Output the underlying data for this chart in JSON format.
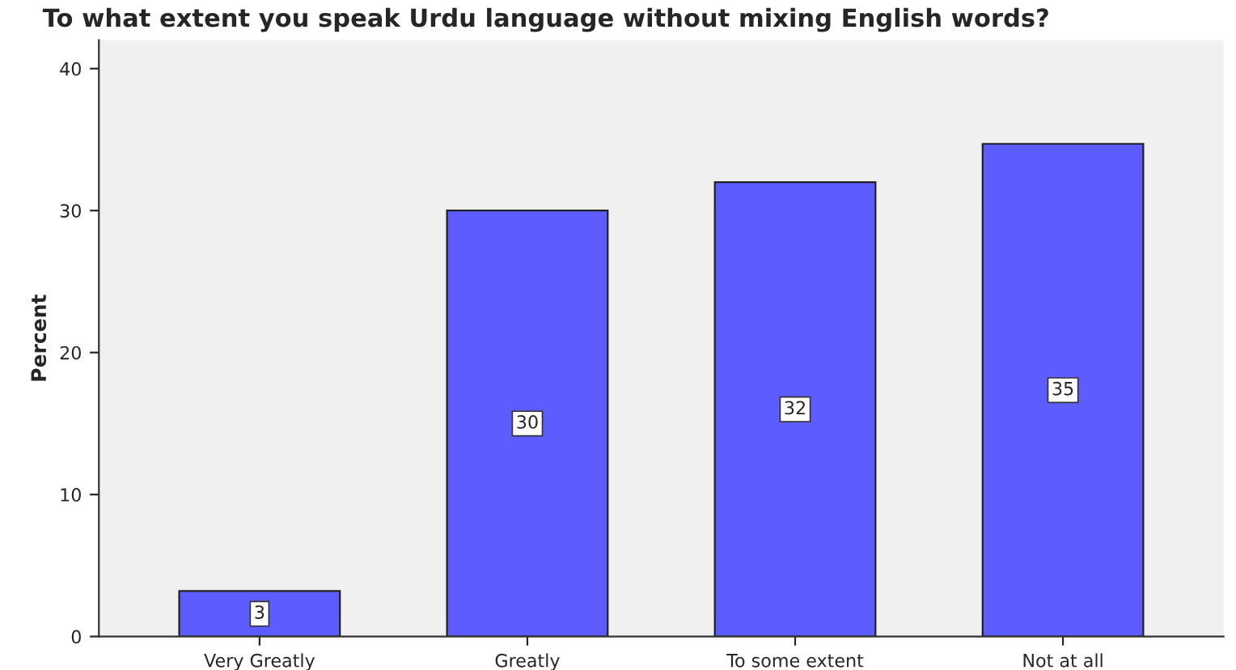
{
  "chart_data": {
    "type": "bar",
    "title": "To what extent you speak Urdu language without mixing English words?",
    "ylabel": "Percent",
    "categories": [
      "Very Greatly",
      "Greatly",
      "To some extent",
      "Not at all"
    ],
    "values": [
      3.2,
      30,
      32,
      34.7
    ],
    "value_labels": [
      "3",
      "30",
      "32",
      "35"
    ],
    "color": "#5d5dff",
    "ylim": [
      0,
      42
    ],
    "yticks": [
      0,
      10,
      20,
      30,
      40
    ],
    "grid": false,
    "legend": false
  }
}
